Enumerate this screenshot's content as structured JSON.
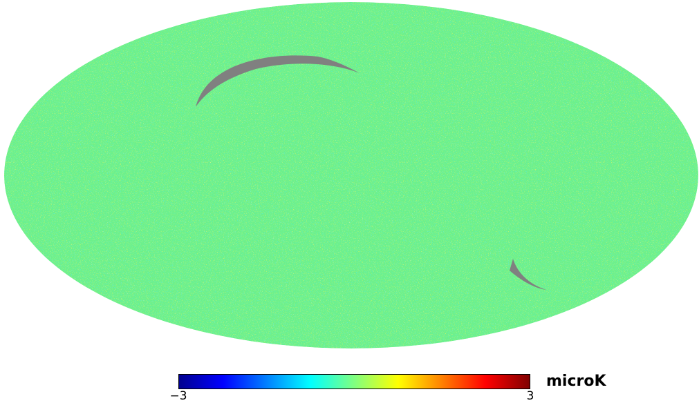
{
  "map": {
    "projection": "mollweide",
    "colormap": "jet",
    "mask_color": "#808080",
    "base_color": "#6cf08c"
  },
  "colorbar": {
    "min_label": "−3",
    "max_label": "3",
    "min_value": -3,
    "max_value": 3,
    "unit": "microK",
    "stops": [
      "#00008f",
      "#0000ff",
      "#0080ff",
      "#00ffff",
      "#80ff80",
      "#ffff00",
      "#ff8000",
      "#ff0000",
      "#800000"
    ]
  }
}
